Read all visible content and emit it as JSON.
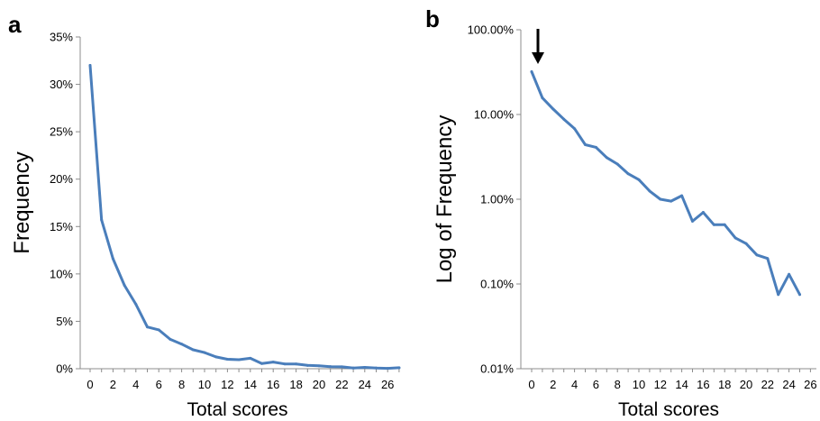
{
  "chart_data": [
    {
      "type": "line",
      "panel_label": "a",
      "xlabel": "Total scores",
      "ylabel": "Frequency",
      "x_ticks": [
        "0",
        "2",
        "4",
        "6",
        "8",
        "10",
        "12",
        "14",
        "16",
        "18",
        "20",
        "22",
        "24",
        "26"
      ],
      "y_ticks": [
        "0%",
        "5%",
        "10%",
        "15%",
        "20%",
        "25%",
        "30%",
        "35%"
      ],
      "xlim": [
        0,
        27
      ],
      "ylim": [
        0,
        35
      ],
      "grid": false,
      "color": "#4a7ebb",
      "x": [
        0,
        1,
        2,
        3,
        4,
        5,
        6,
        7,
        8,
        9,
        10,
        11,
        12,
        13,
        14,
        15,
        16,
        17,
        18,
        19,
        20,
        21,
        22,
        23,
        24,
        25,
        26,
        27
      ],
      "values": [
        32.0,
        15.7,
        11.6,
        8.8,
        6.8,
        4.4,
        4.1,
        3.1,
        2.6,
        2.0,
        1.7,
        1.25,
        1.0,
        0.95,
        1.1,
        0.55,
        0.7,
        0.5,
        0.5,
        0.35,
        0.3,
        0.22,
        0.2,
        0.08,
        0.14,
        0.08,
        0.04,
        0.1
      ]
    },
    {
      "type": "line",
      "panel_label": "b",
      "xlabel": "Total scores",
      "ylabel": "Log of Frequency",
      "x_ticks": [
        "0",
        "2",
        "4",
        "6",
        "8",
        "10",
        "12",
        "14",
        "16",
        "18",
        "20",
        "22",
        "24",
        "26"
      ],
      "y_ticks": [
        "0.01%",
        "0.10%",
        "1.00%",
        "10.00%",
        "100.00%"
      ],
      "y_scale": "log",
      "xlim": [
        0,
        26
      ],
      "ylim": [
        0.01,
        100
      ],
      "grid": false,
      "color": "#4a7ebb",
      "annotation": "arrow-down",
      "x": [
        0,
        1,
        2,
        3,
        4,
        5,
        6,
        7,
        8,
        9,
        10,
        11,
        12,
        13,
        14,
        15,
        16,
        17,
        18,
        19,
        20,
        21,
        22,
        23,
        24,
        25
      ],
      "values": [
        32.0,
        15.7,
        11.6,
        8.8,
        6.8,
        4.4,
        4.1,
        3.1,
        2.6,
        2.0,
        1.7,
        1.25,
        1.0,
        0.95,
        1.1,
        0.55,
        0.7,
        0.5,
        0.5,
        0.35,
        0.3,
        0.22,
        0.2,
        0.075,
        0.13,
        0.075
      ]
    }
  ]
}
